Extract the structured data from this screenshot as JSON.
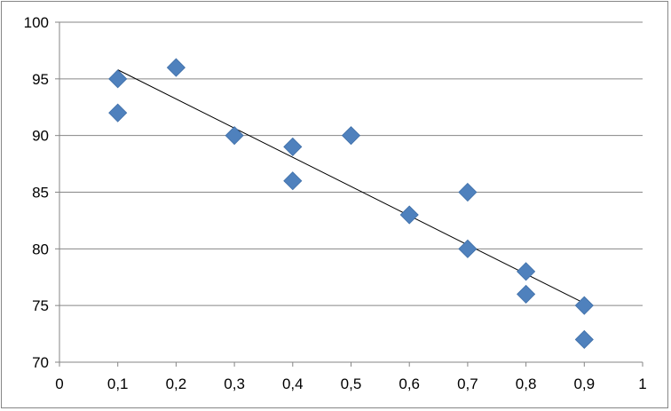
{
  "chart_data": {
    "type": "scatter",
    "title": "",
    "xlabel": "",
    "ylabel": "",
    "xlim": [
      0,
      1
    ],
    "ylim": [
      70,
      100
    ],
    "x_ticks": [
      0,
      0.1,
      0.2,
      0.3,
      0.4,
      0.5,
      0.6,
      0.7,
      0.8,
      0.9,
      1
    ],
    "x_tick_labels": [
      "0",
      "0,1",
      "0,2",
      "0,3",
      "0,4",
      "0,5",
      "0,6",
      "0,7",
      "0,8",
      "0,9",
      "1"
    ],
    "y_ticks": [
      70,
      75,
      80,
      85,
      90,
      95,
      100
    ],
    "y_tick_labels": [
      "70",
      "75",
      "80",
      "85",
      "90",
      "95",
      "100"
    ],
    "grid": {
      "horizontal": true,
      "vertical": false
    },
    "legend": "none",
    "series": [
      {
        "marker": "diamond",
        "color": "#4F81BD",
        "x": [
          0.1,
          0.1,
          0.2,
          0.3,
          0.4,
          0.4,
          0.5,
          0.6,
          0.7,
          0.7,
          0.8,
          0.8,
          0.9,
          0.9
        ],
        "y": [
          95,
          92,
          96,
          90,
          89,
          86,
          90,
          83,
          85,
          80,
          78,
          76,
          75,
          72
        ]
      }
    ],
    "trendline": {
      "type": "linear",
      "color": "#000000",
      "x": [
        0.1,
        0.9
      ],
      "y": [
        95.8,
        75.2
      ]
    }
  }
}
